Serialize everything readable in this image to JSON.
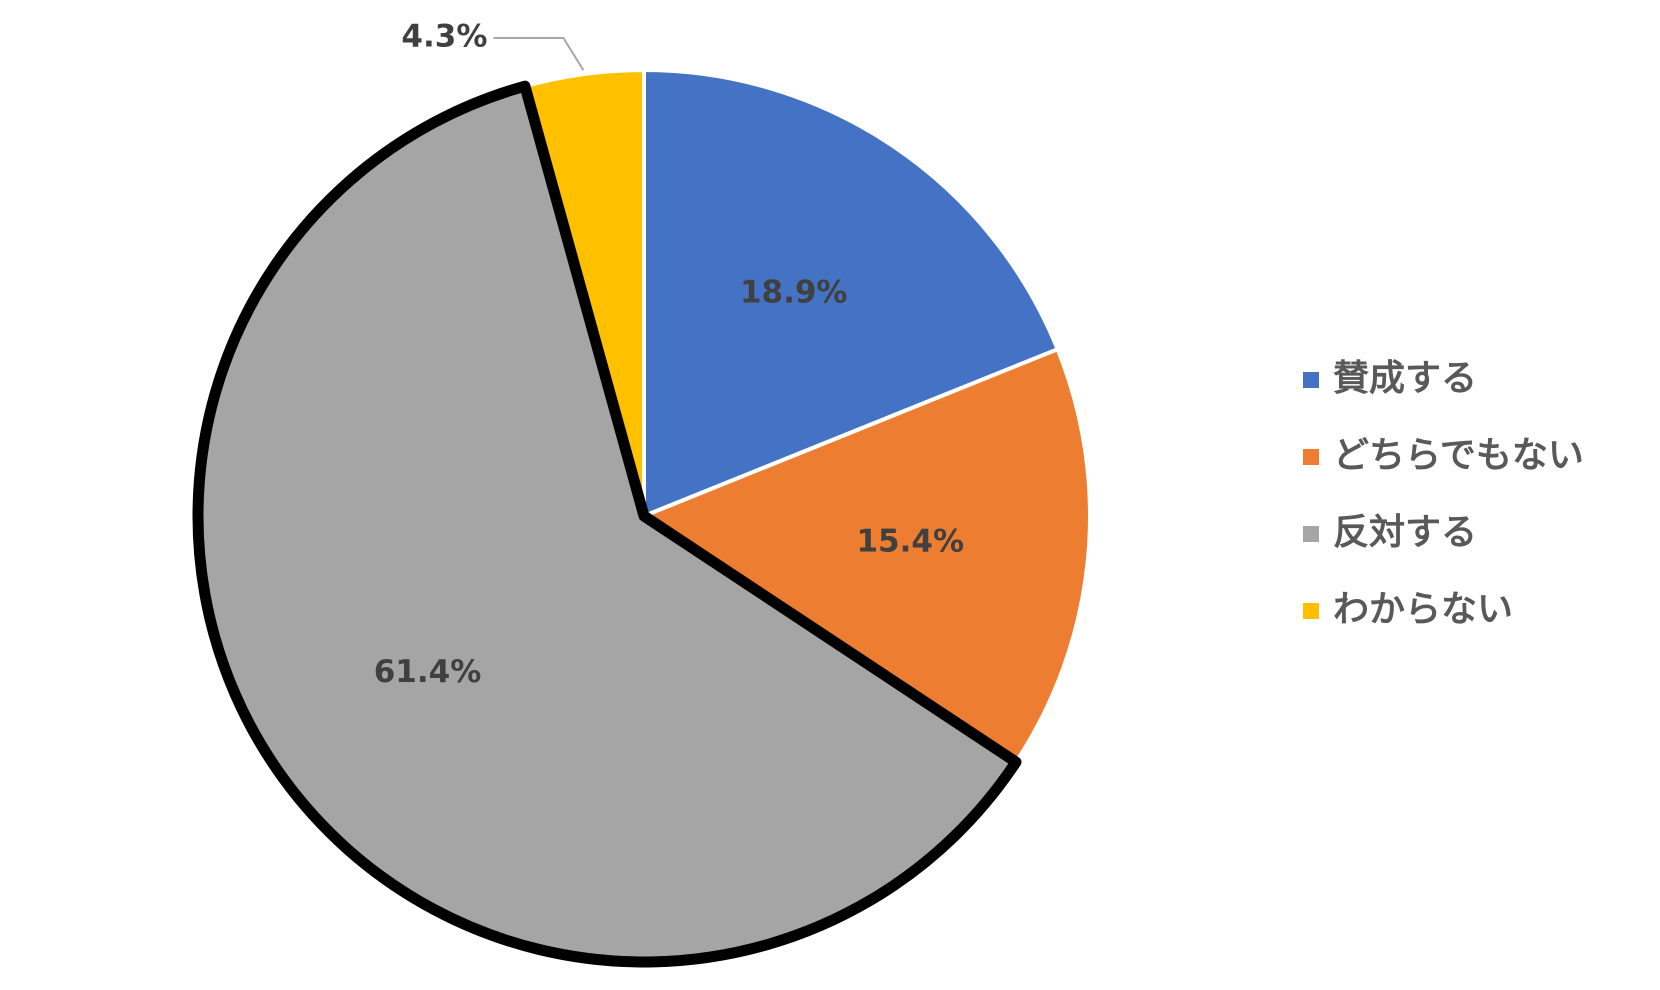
{
  "chart_data": {
    "type": "pie",
    "categories": [
      "賛成する",
      "どちらでもない",
      "反対する",
      "わからない"
    ],
    "values": [
      18.9,
      15.4,
      61.4,
      4.3
    ],
    "value_labels": [
      "18.9%",
      "15.4%",
      "61.4%",
      "4.3%"
    ],
    "colors": [
      "#4472c4",
      "#ed7d31",
      "#a5a5a5",
      "#ffc000"
    ],
    "highlighted_slice": 2,
    "legend": "right"
  }
}
